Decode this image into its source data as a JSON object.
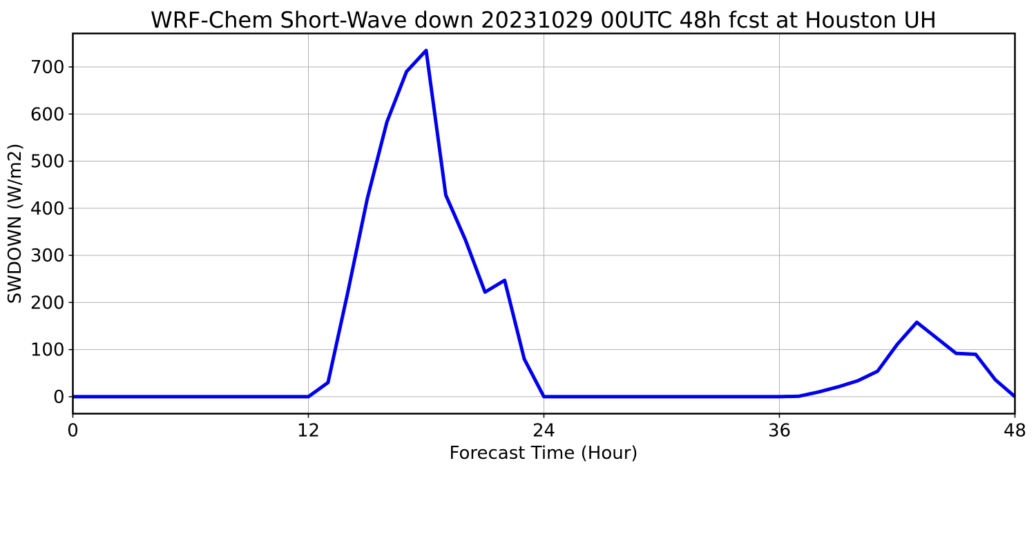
{
  "chart_data": {
    "type": "line",
    "title": "WRF-Chem Short-Wave down  20231029 00UTC 48h fcst at Houston UH",
    "xlabel": "Forecast Time (Hour)",
    "ylabel": "SWDOWN  (W/m2)",
    "xlim": [
      0,
      48
    ],
    "ylim": [
      -36,
      771
    ],
    "xticks": [
      0,
      12,
      24,
      36,
      48
    ],
    "yticks": [
      0,
      100,
      200,
      300,
      400,
      500,
      600,
      700
    ],
    "grid": true,
    "series": [
      {
        "color": "#0000ee",
        "x": [
          0,
          1,
          2,
          3,
          4,
          5,
          6,
          7,
          8,
          9,
          10,
          11,
          12,
          13,
          14,
          15,
          16,
          17,
          18,
          19,
          20,
          21,
          22,
          23,
          24,
          25,
          26,
          27,
          28,
          29,
          30,
          31,
          32,
          33,
          34,
          35,
          36,
          37,
          38,
          39,
          40,
          41,
          42,
          43,
          44,
          45,
          46,
          47,
          48
        ],
        "values": [
          0,
          0,
          0,
          0,
          0,
          0,
          0,
          0,
          0,
          0,
          0,
          0,
          0,
          30,
          220,
          420,
          583,
          690,
          735,
          428,
          333,
          222,
          247,
          80,
          0,
          0,
          0,
          0,
          0,
          0,
          0,
          0,
          0,
          0,
          0,
          0,
          0,
          1,
          10,
          21,
          34,
          54,
          111,
          158,
          125,
          92,
          90,
          36,
          0
        ]
      }
    ]
  }
}
